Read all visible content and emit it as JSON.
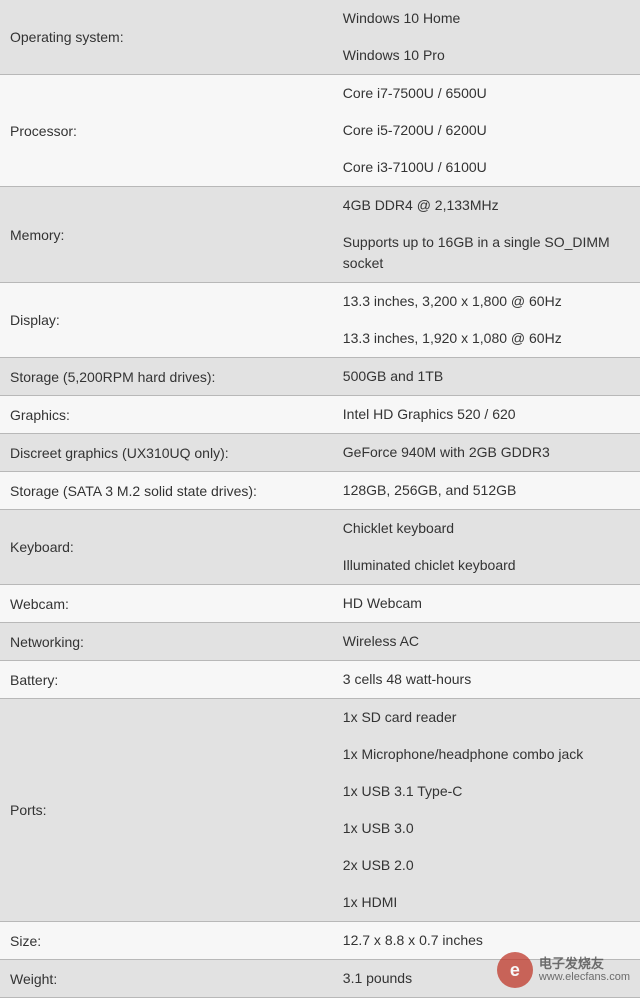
{
  "table": {
    "row_bg_odd": "#e2e2e2",
    "row_bg_even": "#f7f7f7",
    "border_color": "#b8b8b8",
    "text_color": "#333333",
    "font_size": 14,
    "label_width_pct": 52,
    "rows": [
      {
        "label": "Operating system:",
        "values": [
          "Windows 10 Home",
          "Windows 10 Pro"
        ]
      },
      {
        "label": "Processor:",
        "values": [
          "Core i7-7500U / 6500U",
          "Core i5-7200U / 6200U",
          "Core i3-7100U / 6100U"
        ]
      },
      {
        "label": "Memory:",
        "values": [
          "4GB DDR4 @ 2,133MHz",
          "Supports up to 16GB in a single SO_DIMM socket"
        ]
      },
      {
        "label": "Display:",
        "values": [
          "13.3 inches, 3,200 x 1,800 @ 60Hz",
          "13.3 inches, 1,920 x 1,080 @ 60Hz"
        ]
      },
      {
        "label": "Storage (5,200RPM hard drives):",
        "values": [
          "500GB and 1TB"
        ]
      },
      {
        "label": "Graphics:",
        "values": [
          "Intel HD Graphics 520 / 620"
        ]
      },
      {
        "label": "Discreet graphics (UX310UQ only):",
        "values": [
          "GeForce 940M with 2GB GDDR3"
        ]
      },
      {
        "label": "Storage (SATA 3 M.2 solid state drives):",
        "values": [
          "128GB, 256GB, and 512GB"
        ]
      },
      {
        "label": "Keyboard:",
        "values": [
          "Chicklet keyboard",
          "Illuminated chiclet keyboard"
        ]
      },
      {
        "label": "Webcam:",
        "values": [
          "HD Webcam"
        ]
      },
      {
        "label": "Networking:",
        "values": [
          "Wireless AC"
        ]
      },
      {
        "label": "Battery:",
        "values": [
          "3 cells 48 watt-hours"
        ]
      },
      {
        "label": "Ports:",
        "values": [
          "1x SD card reader",
          "1x Microphone/headphone combo jack",
          "1x USB 3.1 Type-C",
          "1x USB 3.0",
          "2x USB 2.0",
          "1x HDMI"
        ]
      },
      {
        "label": "Size:",
        "values": [
          "12.7 x 8.8 x 0.7 inches"
        ]
      },
      {
        "label": "Weight:",
        "values": [
          "3.1 pounds"
        ]
      }
    ]
  },
  "watermark": {
    "cn": "电子发烧友",
    "url": "www.elecfans.com",
    "logo_letter": "e",
    "logo_bg": "#c0392b"
  }
}
